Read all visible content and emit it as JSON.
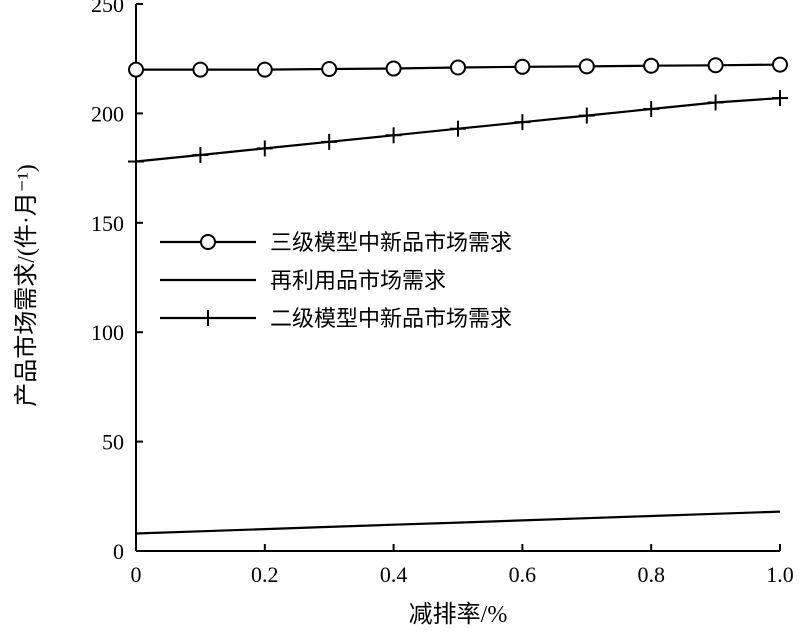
{
  "chart_data": {
    "type": "line",
    "xlabel": "减排率/%",
    "ylabel": "产品市场需求/(件·月⁻¹)",
    "xlim": [
      0,
      1.0
    ],
    "ylim": [
      0,
      250
    ],
    "xticks": [
      0,
      0.2,
      0.4,
      0.6,
      0.8,
      1.0
    ],
    "xtick_labels": [
      "0",
      "0.2",
      "0.4",
      "0.6",
      "0.8",
      "1.0"
    ],
    "yticks": [
      0,
      50,
      100,
      150,
      200,
      250
    ],
    "ytick_labels": [
      "0",
      "50",
      "100",
      "150",
      "200",
      "250"
    ],
    "grid": false,
    "legend_position": "center-left",
    "x": [
      0,
      0.1,
      0.2,
      0.3,
      0.4,
      0.5,
      0.6,
      0.7,
      0.8,
      0.9,
      1.0
    ],
    "series": [
      {
        "name": "三级模型中新品市场需求",
        "marker": "circle",
        "values": [
          220,
          220,
          220,
          220.3,
          220.5,
          221,
          221.3,
          221.5,
          221.8,
          222,
          222.3
        ]
      },
      {
        "name": "再利用品市场需求",
        "marker": "none",
        "values": [
          8,
          9,
          10,
          11,
          12,
          13,
          14,
          15,
          16,
          17,
          18
        ]
      },
      {
        "name": "二级模型中新品市场需求",
        "marker": "plus",
        "values": [
          178,
          181,
          184,
          187,
          190,
          193,
          196,
          199,
          202,
          205,
          207
        ]
      }
    ]
  }
}
